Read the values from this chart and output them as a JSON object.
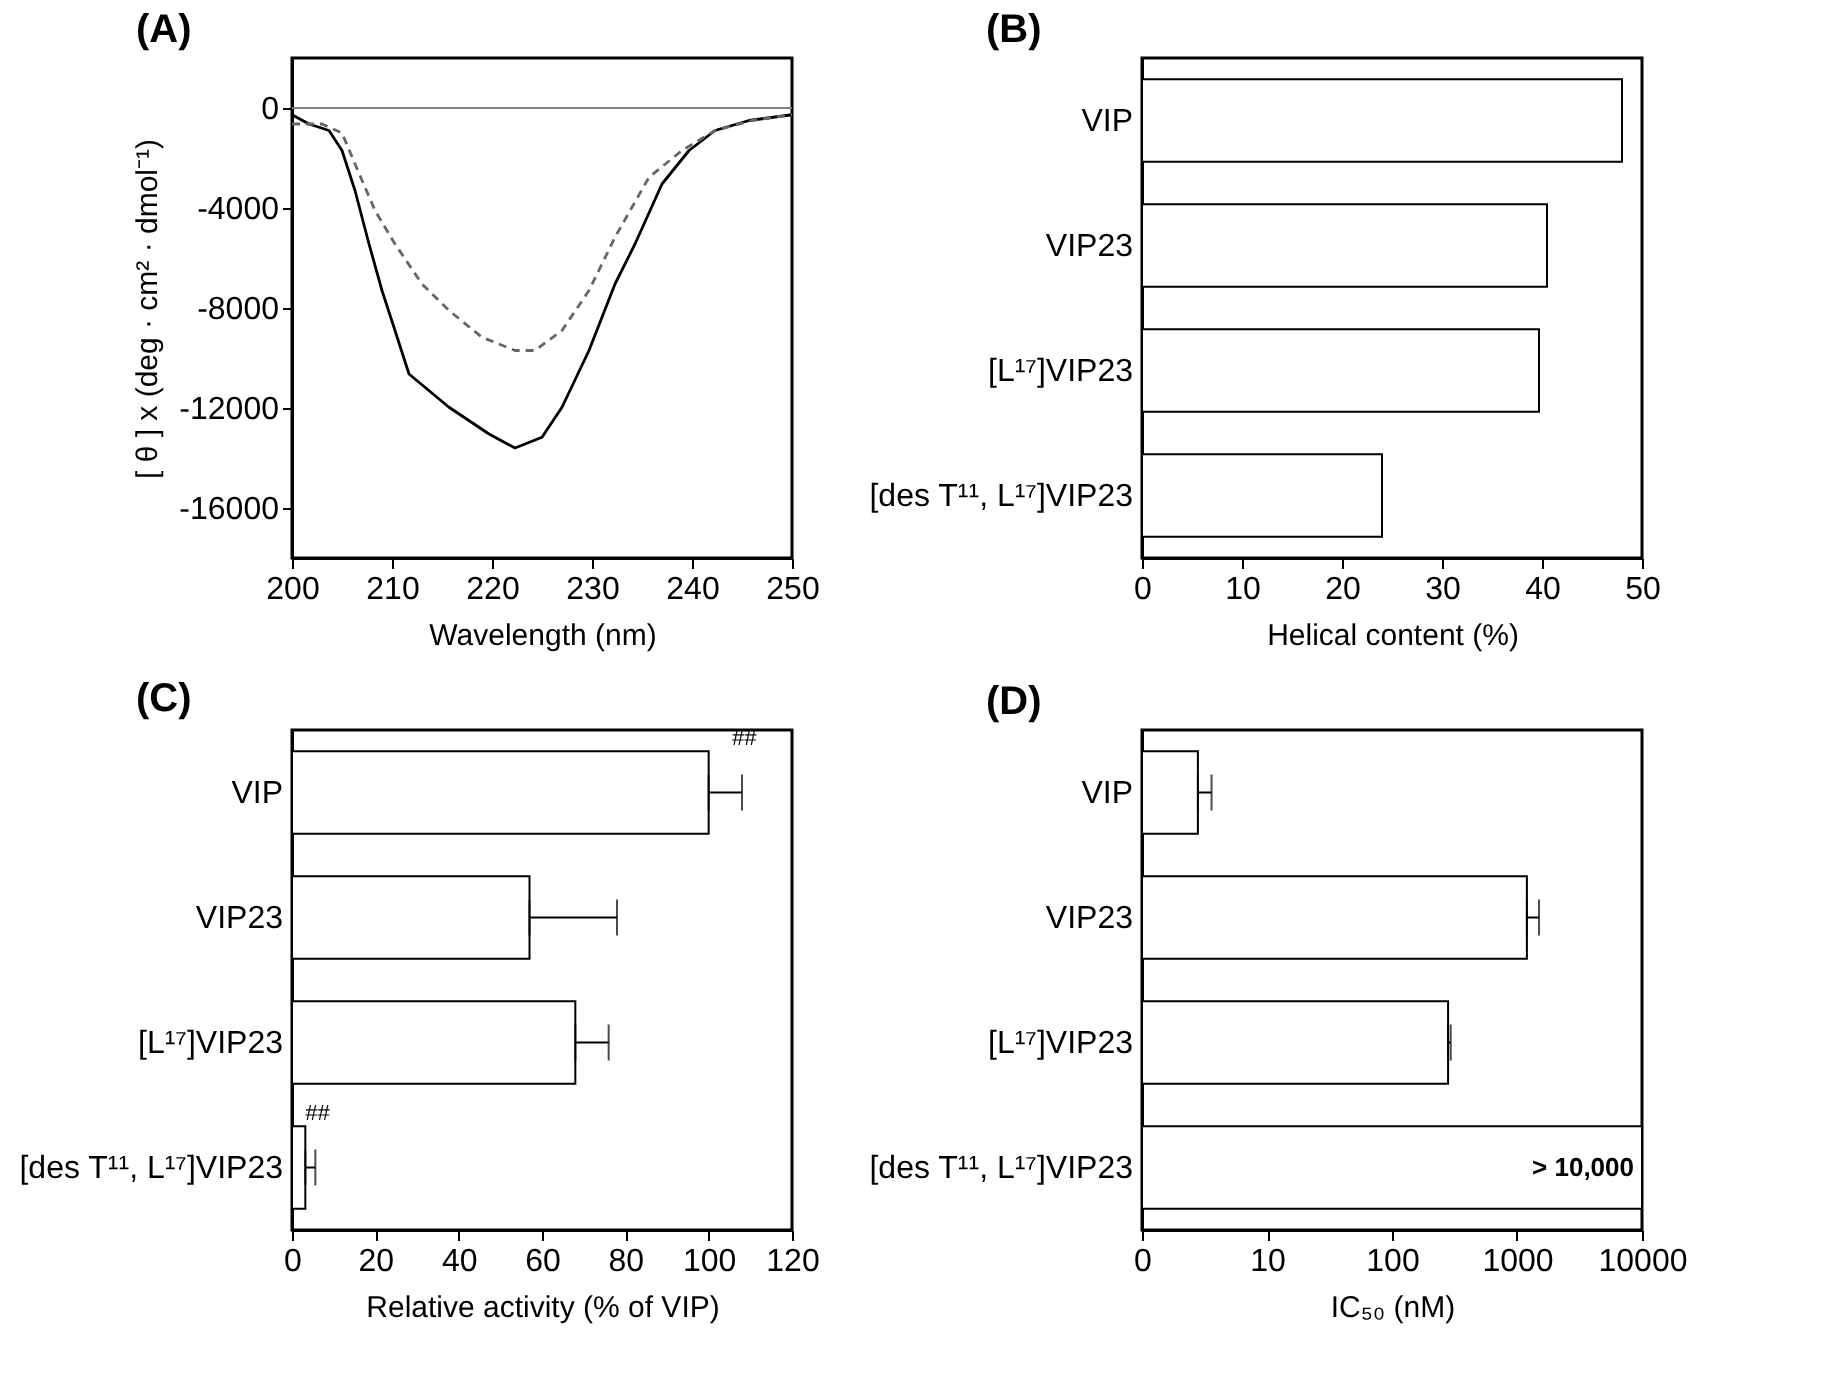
{
  "chart_data": [
    {
      "type": "line",
      "title": "(A)",
      "xlabel": "Wavelength (nm)",
      "ylabel": "[ θ ] x (deg · cm² · dmol⁻¹)",
      "xlim": [
        200,
        250
      ],
      "xticks": [
        200,
        210,
        220,
        230,
        240,
        250
      ],
      "ylim": [
        -18000,
        2000
      ],
      "yticks": [
        0,
        -4000,
        -8000,
        -12000,
        -16000
      ],
      "ref_lines": [
        {
          "axis": "y",
          "value": 0,
          "color": "#808080"
        }
      ],
      "series": [
        {
          "color": "#000000",
          "line_style": "solid",
          "x": [
            200,
            201.7,
            203.7,
            205,
            206.3,
            207.7,
            209,
            210.3,
            211.7,
            215.7,
            219.7,
            222.3,
            225,
            227,
            229.7,
            232.3,
            234.3,
            237,
            239.7,
            242.3,
            245.7,
            250
          ],
          "values": [
            -270,
            -640,
            -900,
            -1700,
            -3300,
            -5440,
            -7300,
            -8900,
            -10640,
            -11970,
            -13040,
            -13600,
            -13170,
            -11970,
            -9700,
            -7040,
            -5440,
            -3040,
            -1700,
            -900,
            -500,
            -270
          ]
        },
        {
          "color": "#666666",
          "line_style": "dashed",
          "x": [
            200,
            203,
            205,
            206.3,
            208.3,
            210.3,
            213,
            215.7,
            219,
            222.3,
            224.3,
            227,
            229.7,
            232.3,
            235.7,
            239,
            242.3,
            246,
            250
          ],
          "values": [
            -640,
            -640,
            -1000,
            -2240,
            -4100,
            -5440,
            -7040,
            -8100,
            -9170,
            -9700,
            -9700,
            -8900,
            -7300,
            -5170,
            -2770,
            -1700,
            -900,
            -500,
            -270
          ]
        }
      ]
    },
    {
      "type": "bar",
      "orientation": "horizontal",
      "title": "(B)",
      "xlabel": "Helical content (%)",
      "categories": [
        "VIP",
        "VIP23",
        "[L¹⁷]VIP23",
        "[des T¹¹, L¹⁷]VIP23"
      ],
      "values": [
        48,
        40.5,
        39.7,
        24
      ],
      "color": "#ffffff",
      "xlim": [
        0,
        50
      ],
      "xticks": [
        0,
        10,
        20,
        30,
        40,
        50
      ]
    },
    {
      "type": "bar",
      "orientation": "horizontal",
      "title": "(C)",
      "xlabel": "Relative activity (% of VIP)",
      "categories": [
        "VIP",
        "VIP23",
        "[L¹⁷]VIP23",
        "[des T¹¹, L¹⁷]VIP23"
      ],
      "values": [
        100,
        57,
        68,
        3.2
      ],
      "errors": [
        [
          100,
          108
        ],
        [
          57,
          78
        ],
        [
          68,
          76
        ],
        [
          3.2,
          5.6
        ]
      ],
      "color": "#ffffff",
      "xlim": [
        0,
        120
      ],
      "xticks": [
        0,
        20,
        40,
        60,
        80,
        100,
        120
      ],
      "annotations": [
        {
          "text": "##",
          "x": 108,
          "y": "VIP"
        },
        {
          "text": "##",
          "x": 5.6,
          "y": "[des T¹¹, L¹⁷]VIP23"
        }
      ]
    },
    {
      "type": "bar",
      "orientation": "horizontal",
      "title": "(D)",
      "xlabel": "IC₅₀ (nM)",
      "log": "x",
      "categories": [
        "VIP",
        "VIP23",
        "[L¹⁷]VIP23",
        "[des T¹¹, L¹⁷]VIP23"
      ],
      "values": [
        2.8,
        1200,
        281,
        10000
      ],
      "errors": [
        [
          2.8,
          3.6
        ],
        [
          1200,
          1500
        ],
        [
          281,
          295
        ],
        null
      ],
      "value_labels": [
        null,
        null,
        null,
        "> 10,000"
      ],
      "color": "#ffffff",
      "xlim": [
        0,
        10000
      ],
      "xticks": [
        0,
        10,
        100,
        1000,
        10000
      ]
    }
  ]
}
